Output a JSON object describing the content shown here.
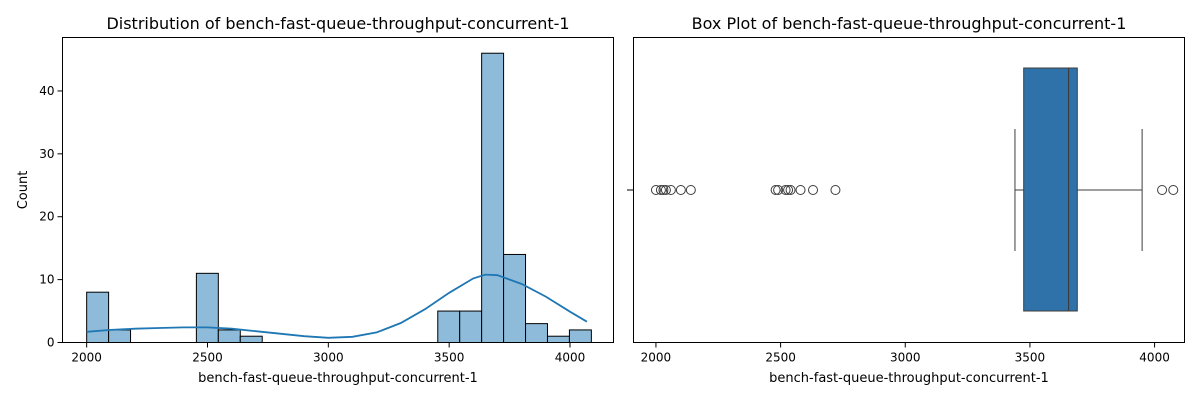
{
  "chart_data": [
    {
      "type": "histogram",
      "title": "Distribution of bench-fast-queue-throughput-concurrent-1",
      "xlabel": "bench-fast-queue-throughput-concurrent-1",
      "ylabel": "Count",
      "xlim": [
        1900,
        4180
      ],
      "ylim": [
        0,
        48.5
      ],
      "xticks": [
        2000,
        2500,
        3000,
        3500,
        4000
      ],
      "yticks": [
        0,
        10,
        20,
        30,
        40
      ],
      "bin_start": 2000,
      "bin_width": 90.8,
      "counts": [
        8,
        2,
        0,
        0,
        0,
        11,
        2,
        1,
        0,
        0,
        0,
        0,
        0,
        0,
        0,
        0,
        5,
        5,
        46,
        14,
        3,
        1,
        2
      ],
      "bar_color": "#8fbbda",
      "kde": {
        "color": "#1f77b4",
        "x": [
          2000,
          2100,
          2200,
          2300,
          2400,
          2500,
          2600,
          2700,
          2800,
          2900,
          3000,
          3100,
          3200,
          3300,
          3400,
          3500,
          3600,
          3650,
          3700,
          3800,
          3900,
          4000,
          4070
        ],
        "y": [
          1.7,
          2.0,
          2.2,
          2.3,
          2.4,
          2.4,
          2.2,
          1.8,
          1.4,
          1.0,
          0.75,
          0.9,
          1.6,
          3.1,
          5.3,
          7.9,
          10.2,
          10.8,
          10.7,
          9.3,
          7.3,
          4.9,
          3.3
        ]
      }
    },
    {
      "type": "box",
      "title": "Box Plot of bench-fast-queue-throughput-concurrent-1",
      "xlabel": "bench-fast-queue-throughput-concurrent-1",
      "xlim": [
        1910,
        4120
      ],
      "xticks": [
        2000,
        2500,
        3000,
        3500,
        4000
      ],
      "q1": 3475,
      "median": 3655,
      "q3": 3690,
      "whisker_low": 3440,
      "whisker_high": 3950,
      "outliers": [
        2000,
        2020,
        2030,
        2040,
        2060,
        2100,
        2140,
        2480,
        2490,
        2520,
        2530,
        2540,
        2580,
        2630,
        2720,
        4030,
        4075
      ],
      "box_color": "#2f72a9"
    }
  ]
}
